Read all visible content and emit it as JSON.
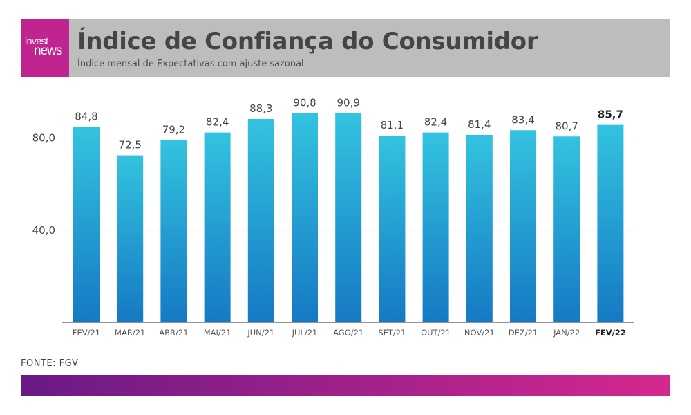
{
  "header": {
    "logo_top": "invest",
    "logo_bottom": "news",
    "title": "Índice de Confiança do Consumidor",
    "subtitle": "Índice mensal de Expectativas com ajuste sazonal"
  },
  "source": "FONTE: FGV",
  "colors": {
    "header_bg": "#bdbdbd",
    "logo_bg": "#c0258f",
    "bar_top": "#33c3df",
    "bar_bottom": "#1579c4",
    "footer_gradient_start": "#6a1a86",
    "footer_gradient_end": "#d4288f",
    "text": "#454545"
  },
  "chart_data": {
    "type": "bar",
    "categories": [
      "FEV/21",
      "MAR/21",
      "ABR/21",
      "MAI/21",
      "JUN/21",
      "JUL/21",
      "AGO/21",
      "SET/21",
      "OUT/21",
      "NOV/21",
      "DEZ/21",
      "JAN/22",
      "FEV/22"
    ],
    "values": [
      84.8,
      72.5,
      79.2,
      82.4,
      88.3,
      90.8,
      90.9,
      81.1,
      82.4,
      81.4,
      83.4,
      80.7,
      85.7
    ],
    "value_labels": [
      "84,8",
      "72,5",
      "79,2",
      "82,4",
      "88,3",
      "90,8",
      "90,9",
      "81,1",
      "82,4",
      "81,4",
      "83,4",
      "80,7",
      "85,7"
    ],
    "highlight_category": "FEV/22",
    "yticks": [
      40,
      80
    ],
    "ytick_labels": [
      "40,0",
      "80,0"
    ],
    "ylim": [
      0,
      100
    ],
    "grid": true,
    "legend": false,
    "title": "Índice de Confiança do Consumidor",
    "subtitle": "Índice mensal de Expectativas com ajuste sazonal"
  }
}
